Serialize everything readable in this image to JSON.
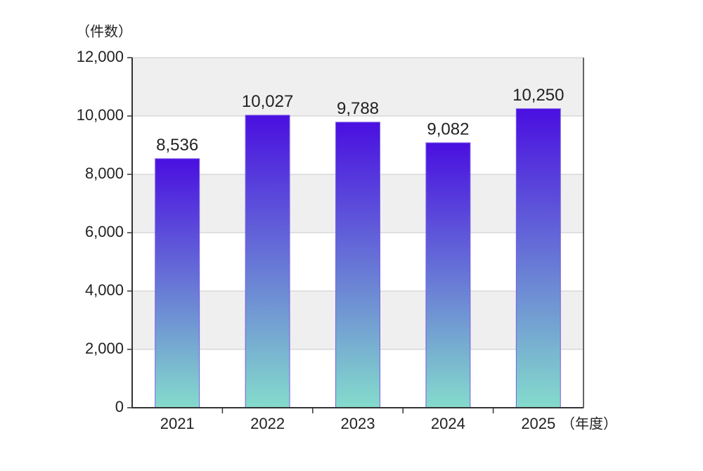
{
  "chart_data": {
    "type": "bar",
    "y_axis_label": "（件数）",
    "x_axis_label": "（年度）",
    "categories": [
      "2021",
      "2022",
      "2023",
      "2024",
      "2025"
    ],
    "values": [
      8536,
      10027,
      9788,
      9082,
      10250
    ],
    "value_labels": [
      "8,536",
      "10,027",
      "9,788",
      "9,082",
      "10,250"
    ],
    "color": [
      "#4a0fe0",
      "#84dccc"
    ],
    "ylim": [
      0,
      12000
    ],
    "yticks": [
      0,
      {
        "value": 2000,
        "label": "2,000"
      },
      {
        "value": 4000,
        "label": "4,000"
      },
      {
        "value": 6000,
        "label": "6,000"
      },
      {
        "value": 8000,
        "label": "8,000"
      },
      {
        "value": 10000,
        "label": "10,000"
      },
      {
        "value": 12000,
        "label": "12,000"
      }
    ],
    "grid": true
  }
}
